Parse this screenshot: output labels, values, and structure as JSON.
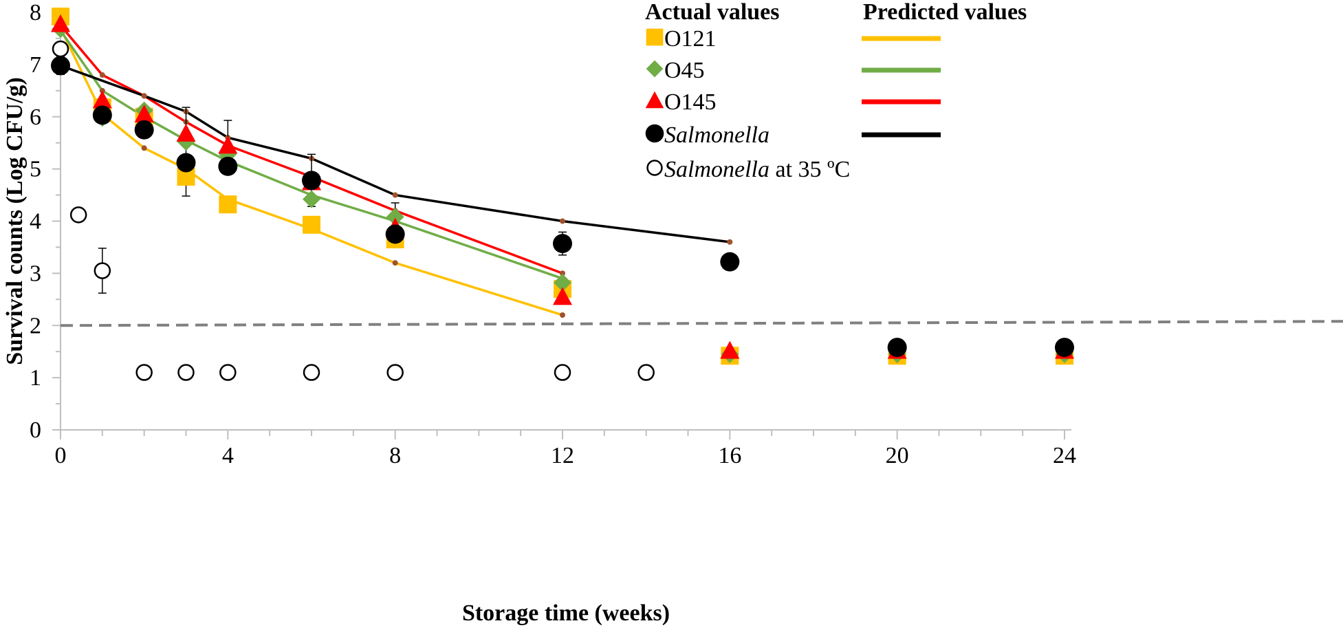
{
  "chart_data": {
    "type": "scatter",
    "xlabel": "Storage time (weeks)",
    "ylabel": "Survival counts (Log CFU/g)",
    "xlim": [
      0,
      24
    ],
    "ylim": [
      0,
      8
    ],
    "x_ticks": [
      "0",
      "4",
      "8",
      "12",
      "16",
      "20",
      "24"
    ],
    "y_ticks": [
      "0",
      "1",
      "2",
      "3",
      "4",
      "5",
      "6",
      "7",
      "8"
    ],
    "detection_limit": 2.0,
    "legend": {
      "actual_title": "Actual values",
      "predicted_title": "Predicted values",
      "entries": [
        {
          "label": "O121",
          "italic": "",
          "suffix": "",
          "marker": "square",
          "color": "#FFC000"
        },
        {
          "label": "O45",
          "italic": "",
          "suffix": "",
          "marker": "diamond",
          "color": "#70AD47"
        },
        {
          "label": "O145",
          "italic": "",
          "suffix": "",
          "marker": "triangle",
          "color": "#FF0000"
        },
        {
          "label": "",
          "italic": "Salmonella",
          "suffix": "",
          "marker": "circle-filled",
          "color": "#000000"
        },
        {
          "label": "",
          "italic": "Salmonella",
          "suffix": " at 35 ºC",
          "marker": "circle-open",
          "color": "#000000"
        }
      ],
      "predicted_colors": [
        "#FFC000",
        "#70AD47",
        "#FF0000",
        "#000000"
      ]
    },
    "series": [
      {
        "name": "O121",
        "marker": "square",
        "color": "#FFC000",
        "actual": [
          [
            0,
            7.92
          ],
          [
            1,
            6.18
          ],
          [
            2,
            6.0
          ],
          [
            3,
            4.85
          ],
          [
            4,
            4.32
          ],
          [
            6,
            3.93
          ],
          [
            8,
            3.65
          ],
          [
            12,
            2.7
          ],
          [
            16,
            1.42
          ],
          [
            20,
            1.42
          ],
          [
            24,
            1.42
          ]
        ],
        "predicted": [
          [
            0,
            7.7
          ],
          [
            1,
            6.05
          ],
          [
            2,
            5.4
          ],
          [
            3,
            5.0
          ],
          [
            4,
            4.42
          ],
          [
            6,
            3.85
          ],
          [
            8,
            3.2
          ],
          [
            12,
            2.2
          ]
        ]
      },
      {
        "name": "O45",
        "marker": "diamond",
        "color": "#70AD47",
        "actual": [
          [
            0,
            7.68
          ],
          [
            1,
            5.98
          ],
          [
            2,
            6.12
          ],
          [
            3,
            5.52
          ],
          [
            4,
            5.28
          ],
          [
            6,
            4.42
          ],
          [
            8,
            4.08
          ],
          [
            12,
            2.82
          ],
          [
            16,
            1.45
          ],
          [
            20,
            1.45
          ],
          [
            24,
            1.45
          ]
        ],
        "predicted": [
          [
            0,
            7.65
          ],
          [
            1,
            6.5
          ],
          [
            2,
            6.0
          ],
          [
            3,
            5.55
          ],
          [
            4,
            5.15
          ],
          [
            6,
            4.5
          ],
          [
            8,
            4.0
          ],
          [
            12,
            2.9
          ]
        ]
      },
      {
        "name": "O145",
        "marker": "triangle",
        "color": "#FF0000",
        "actual": [
          [
            0,
            7.78
          ],
          [
            1,
            6.32
          ],
          [
            2,
            6.05
          ],
          [
            3,
            5.68
          ],
          [
            4,
            5.45
          ],
          [
            6,
            4.75
          ],
          [
            8,
            3.88
          ],
          [
            12,
            2.55
          ],
          [
            16,
            1.52
          ],
          [
            20,
            1.52
          ],
          [
            24,
            1.52
          ]
        ],
        "predicted": [
          [
            0,
            7.75
          ],
          [
            1,
            6.8
          ],
          [
            2,
            6.4
          ],
          [
            3,
            5.9
          ],
          [
            4,
            5.45
          ],
          [
            6,
            4.85
          ],
          [
            8,
            4.2
          ],
          [
            12,
            3.0
          ]
        ]
      },
      {
        "name": "Salmonella",
        "marker": "circle-filled",
        "color": "#000000",
        "actual": [
          [
            0,
            6.98
          ],
          [
            1,
            6.03
          ],
          [
            2,
            5.75
          ],
          [
            3,
            5.12
          ],
          [
            4,
            5.05
          ],
          [
            6,
            4.78
          ],
          [
            8,
            3.75
          ],
          [
            12,
            3.57
          ],
          [
            16,
            3.22
          ],
          [
            20,
            1.58
          ],
          [
            24,
            1.58
          ]
        ],
        "predicted": [
          [
            0,
            6.98
          ],
          [
            2,
            6.4
          ],
          [
            3,
            6.1
          ],
          [
            4,
            5.6
          ],
          [
            6,
            5.2
          ],
          [
            8,
            4.5
          ],
          [
            12,
            4.0
          ],
          [
            16,
            3.6
          ]
        ]
      },
      {
        "name": "Salmonella at 35 ºC",
        "marker": "circle-open",
        "color": "#000000",
        "actual": [
          [
            0,
            7.3
          ],
          [
            0.43,
            4.12
          ],
          [
            1,
            3.05
          ],
          [
            2,
            1.1
          ],
          [
            3,
            1.1
          ],
          [
            4,
            1.1
          ],
          [
            6,
            1.1
          ],
          [
            8,
            1.1
          ],
          [
            12,
            1.1
          ],
          [
            14,
            1.1
          ]
        ],
        "predicted": []
      }
    ],
    "error_bars": [
      {
        "x": 1,
        "y": 3.05,
        "err": 0.43
      },
      {
        "x": 3,
        "y": 4.85,
        "err": 0.37
      },
      {
        "x": 3,
        "y": 5.68,
        "err": 0.5
      },
      {
        "x": 4,
        "y": 5.45,
        "err": 0.48
      },
      {
        "x": 6,
        "y": 4.78,
        "err": 0.5
      },
      {
        "x": 8,
        "y": 4.08,
        "err": 0.27
      },
      {
        "x": 12,
        "y": 3.57,
        "err": 0.22
      },
      {
        "x": 0,
        "y": 6.98,
        "err": 0.17
      }
    ]
  }
}
